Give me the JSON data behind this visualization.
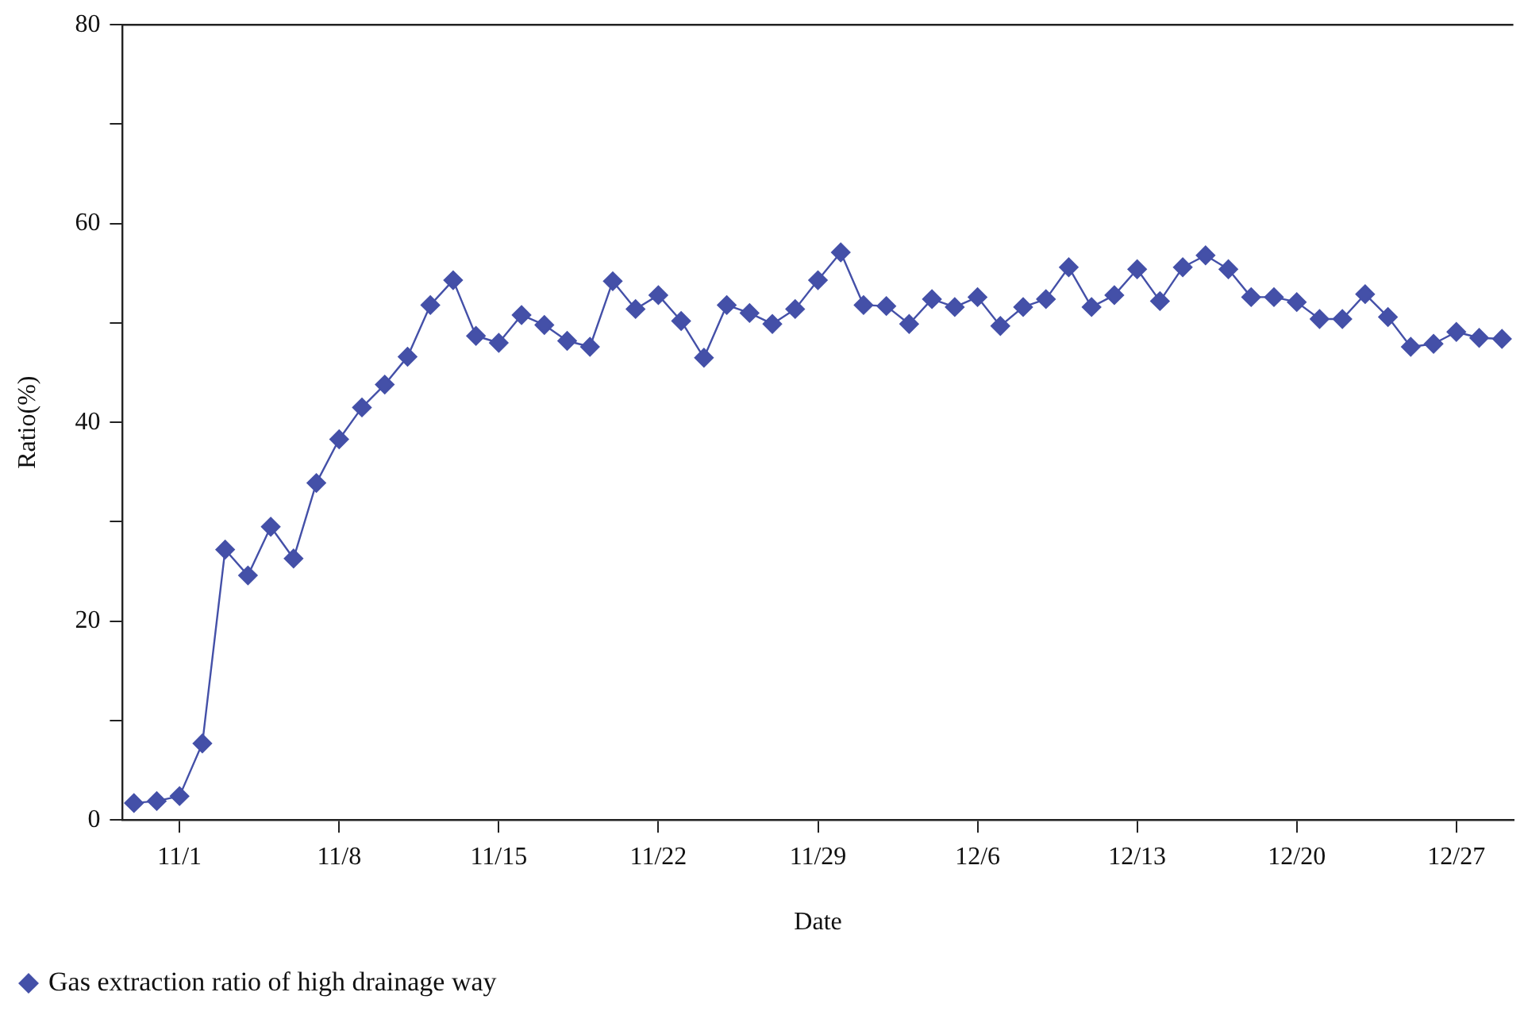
{
  "chart_data": {
    "type": "line",
    "xlabel": "Date",
    "ylabel": "Ratio(%)",
    "categories": [
      null,
      null,
      "11/1",
      null,
      null,
      null,
      null,
      null,
      null,
      "11/8",
      null,
      null,
      null,
      null,
      null,
      null,
      "11/15",
      null,
      null,
      null,
      null,
      null,
      null,
      "11/22",
      null,
      null,
      null,
      null,
      null,
      null,
      "11/29",
      null,
      null,
      null,
      null,
      null,
      null,
      "12/6",
      null,
      null,
      null,
      null,
      null,
      null,
      "12/13",
      null,
      null,
      null,
      null,
      null,
      null,
      "12/20",
      null,
      null,
      null,
      null,
      null,
      null,
      "12/27",
      null,
      null
    ],
    "series": [
      {
        "name": "Gas extraction ratio of high drainage way",
        "color": "#4450a8",
        "values": [
          1.7,
          1.9,
          2.4,
          7.7,
          27.2,
          24.6,
          29.5,
          26.3,
          33.9,
          38.3,
          41.5,
          43.8,
          46.6,
          51.8,
          54.3,
          48.7,
          48.0,
          50.8,
          49.8,
          48.2,
          47.6,
          54.2,
          51.4,
          52.8,
          50.2,
          46.5,
          51.8,
          51.0,
          49.9,
          51.4,
          54.3,
          57.1,
          51.8,
          51.7,
          49.9,
          52.4,
          51.6,
          52.6,
          49.7,
          51.6,
          52.4,
          55.6,
          51.6,
          52.8,
          55.4,
          52.2,
          55.6,
          56.8,
          55.4,
          52.6,
          52.6,
          52.1,
          50.4,
          50.4,
          52.9,
          50.6,
          47.6,
          47.9,
          49.1,
          48.5,
          48.4
        ]
      }
    ],
    "ylim": [
      0,
      80
    ],
    "yticks": [
      0,
      {
        "value": 10,
        "label": null
      },
      20,
      {
        "value": 30,
        "label": null
      },
      40,
      {
        "value": 50,
        "label": null
      },
      60,
      {
        "value": 70,
        "label": null
      },
      80
    ],
    "grid": false,
    "legend": "bottom",
    "marker": "diamond",
    "line_style": "solid"
  }
}
